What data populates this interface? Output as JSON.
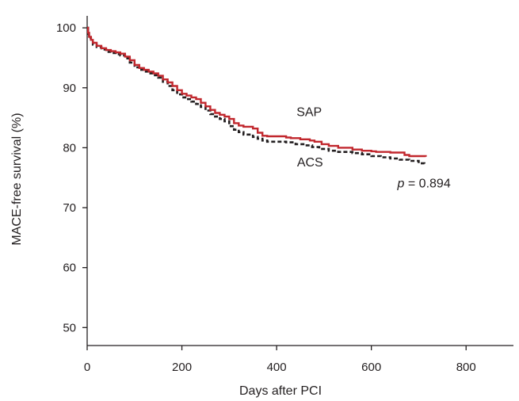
{
  "chart_data": {
    "type": "line",
    "title": "",
    "xlabel": "Days after PCI",
    "ylabel": "MACE-free survival (%)",
    "xlim": [
      0,
      900
    ],
    "ylim": [
      47,
      102
    ],
    "xticks": [
      0,
      200,
      400,
      600,
      800
    ],
    "yticks": [
      50,
      60,
      70,
      80,
      90,
      100
    ],
    "grid": false,
    "annotation": {
      "prefix": "p",
      "text": " = 0.894",
      "x": 655,
      "y": 73.4
    },
    "series": [
      {
        "name": "SAP",
        "color": "#c1272d",
        "style": "solid",
        "label_pos": {
          "x": 442,
          "y": 85.3
        },
        "points": [
          [
            0,
            100
          ],
          [
            2,
            99.2
          ],
          [
            4,
            98.5
          ],
          [
            8,
            98.0
          ],
          [
            12,
            97.5
          ],
          [
            20,
            97.0
          ],
          [
            30,
            96.6
          ],
          [
            40,
            96.3
          ],
          [
            50,
            96.1
          ],
          [
            60,
            95.9
          ],
          [
            70,
            95.7
          ],
          [
            80,
            95.2
          ],
          [
            90,
            94.6
          ],
          [
            100,
            93.8
          ],
          [
            110,
            93.3
          ],
          [
            120,
            93.0
          ],
          [
            130,
            92.7
          ],
          [
            140,
            92.4
          ],
          [
            150,
            92.0
          ],
          [
            160,
            91.4
          ],
          [
            170,
            90.9
          ],
          [
            180,
            90.3
          ],
          [
            190,
            89.6
          ],
          [
            200,
            89.0
          ],
          [
            210,
            88.7
          ],
          [
            220,
            88.4
          ],
          [
            230,
            88.1
          ],
          [
            240,
            87.5
          ],
          [
            250,
            86.9
          ],
          [
            260,
            86.3
          ],
          [
            270,
            85.8
          ],
          [
            280,
            85.5
          ],
          [
            290,
            85.2
          ],
          [
            300,
            84.8
          ],
          [
            310,
            84.1
          ],
          [
            320,
            83.7
          ],
          [
            330,
            83.5
          ],
          [
            350,
            83.2
          ],
          [
            360,
            82.5
          ],
          [
            370,
            82.0
          ],
          [
            380,
            81.9
          ],
          [
            420,
            81.7
          ],
          [
            430,
            81.6
          ],
          [
            450,
            81.4
          ],
          [
            470,
            81.2
          ],
          [
            480,
            81.0
          ],
          [
            495,
            80.6
          ],
          [
            510,
            80.3
          ],
          [
            530,
            80.0
          ],
          [
            560,
            79.7
          ],
          [
            580,
            79.5
          ],
          [
            600,
            79.4
          ],
          [
            610,
            79.3
          ],
          [
            640,
            79.2
          ],
          [
            670,
            78.8
          ],
          [
            680,
            78.6
          ],
          [
            715,
            78.5
          ]
        ]
      },
      {
        "name": "ACS",
        "color": "#231f20",
        "style": "dashed",
        "label_pos": {
          "x": 443,
          "y": 76.9
        },
        "points": [
          [
            0,
            100
          ],
          [
            2,
            99.0
          ],
          [
            4,
            98.3
          ],
          [
            8,
            97.8
          ],
          [
            12,
            97.2
          ],
          [
            20,
            96.8
          ],
          [
            30,
            96.4
          ],
          [
            40,
            96.0
          ],
          [
            50,
            95.8
          ],
          [
            60,
            95.6
          ],
          [
            70,
            95.4
          ],
          [
            80,
            94.9
          ],
          [
            90,
            94.2
          ],
          [
            100,
            93.4
          ],
          [
            110,
            93.0
          ],
          [
            120,
            92.7
          ],
          [
            130,
            92.4
          ],
          [
            140,
            92.1
          ],
          [
            150,
            91.7
          ],
          [
            160,
            91.0
          ],
          [
            170,
            90.3
          ],
          [
            180,
            89.6
          ],
          [
            190,
            88.9
          ],
          [
            200,
            88.4
          ],
          [
            210,
            88.1
          ],
          [
            220,
            87.7
          ],
          [
            230,
            87.3
          ],
          [
            240,
            86.8
          ],
          [
            250,
            86.2
          ],
          [
            260,
            85.6
          ],
          [
            270,
            85.2
          ],
          [
            280,
            84.8
          ],
          [
            290,
            84.4
          ],
          [
            300,
            83.6
          ],
          [
            310,
            83.0
          ],
          [
            320,
            82.6
          ],
          [
            330,
            82.2
          ],
          [
            350,
            81.8
          ],
          [
            360,
            81.5
          ],
          [
            370,
            81.2
          ],
          [
            380,
            81.0
          ],
          [
            420,
            80.9
          ],
          [
            440,
            80.6
          ],
          [
            460,
            80.4
          ],
          [
            475,
            80.1
          ],
          [
            490,
            79.8
          ],
          [
            510,
            79.5
          ],
          [
            530,
            79.3
          ],
          [
            560,
            79.1
          ],
          [
            580,
            78.9
          ],
          [
            600,
            78.6
          ],
          [
            620,
            78.4
          ],
          [
            640,
            78.2
          ],
          [
            660,
            78.0
          ],
          [
            680,
            77.8
          ],
          [
            700,
            77.4
          ],
          [
            712,
            77.3
          ]
        ]
      }
    ]
  }
}
